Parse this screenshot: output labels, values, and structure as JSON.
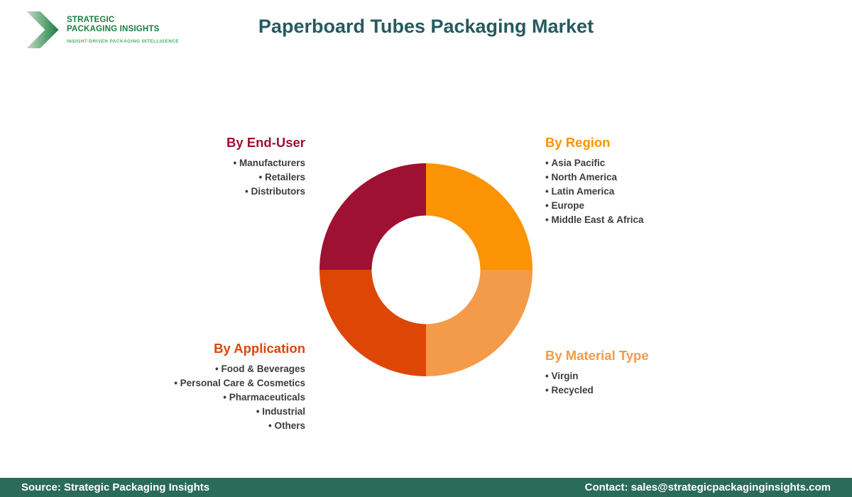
{
  "header": {
    "logo": {
      "line1": "STRATEGIC",
      "line2": "PACKAGING INSIGHTS",
      "tagline": "INSIGHT-DRIVEN PACKAGING INTELLIGENCE",
      "brand_green": "#157F3F",
      "tagline_green": "#4DAE66"
    },
    "title": "Paperboard Tubes Packaging Market",
    "title_color": "#265A5E"
  },
  "segments": {
    "end_user": {
      "title": "By End-User",
      "color": "#9E1132",
      "items": [
        "Manufacturers",
        "Retailers",
        "Distributors"
      ]
    },
    "region": {
      "title": "By Region",
      "color": "#FB9304",
      "items": [
        "Asia Pacific",
        "North America",
        "Latin America",
        "Europe",
        "Middle East & Africa"
      ]
    },
    "application": {
      "title": "By Application",
      "color": "#DE4606",
      "items": [
        "Food & Beverages",
        "Personal Care & Cosmetics",
        "Pharmaceuticals",
        "Industrial",
        "Others"
      ]
    },
    "material": {
      "title": "By Material Type",
      "color": "#F49B4A",
      "items": [
        "Virgin",
        "Recycled"
      ]
    }
  },
  "chart_data": {
    "type": "pie",
    "subtype": "donut",
    "title": "Paperboard Tubes Packaging Market",
    "categories": [
      "By Region",
      "By Material Type",
      "By Application",
      "By End-User"
    ],
    "values": [
      25,
      25,
      25,
      25
    ],
    "colors": [
      "#FB9304",
      "#F49B4A",
      "#DE4606",
      "#9E1132"
    ],
    "start_angle_deg": -90,
    "direction": "clockwise",
    "inner_radius_ratio": 0.51,
    "legend_position": "none"
  },
  "footer": {
    "source": "Source: Strategic Packaging Insights",
    "contact": "Contact: sales@strategicpackaginginsights.com",
    "bg_color": "#2A6B59"
  }
}
